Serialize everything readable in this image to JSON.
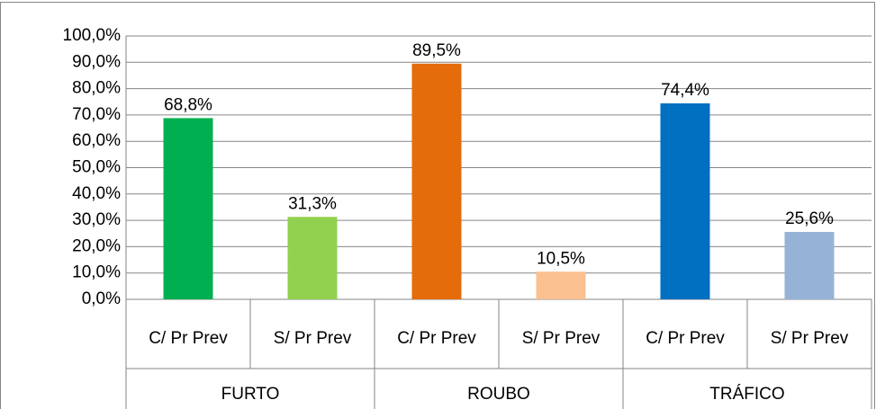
{
  "chart_data": {
    "type": "bar",
    "categories": [
      "C/ Pr Prev",
      "S/ Pr Prev",
      "C/ Pr Prev",
      "S/ Pr Prev",
      "C/ Pr Prev",
      "S/ Pr Prev"
    ],
    "groups": [
      "FURTO",
      "ROUBO",
      "TRÁFICO"
    ],
    "values": [
      68.8,
      31.3,
      89.5,
      10.5,
      74.4,
      25.6
    ],
    "value_labels": [
      "68,8%",
      "31,3%",
      "89,5%",
      "10,5%",
      "74,4%",
      "25,6%"
    ],
    "colors": [
      "#00b050",
      "#92d050",
      "#e46c0a",
      "#fac090",
      "#0070c0",
      "#95b3d7"
    ],
    "ylim": [
      0,
      100
    ],
    "yticks": [
      {
        "value": 0,
        "label": "0,0%"
      },
      {
        "value": 10,
        "label": "10,0%"
      },
      {
        "value": 20,
        "label": "20,0%"
      },
      {
        "value": 30,
        "label": "30,0%"
      },
      {
        "value": 40,
        "label": "40,0%"
      },
      {
        "value": 50,
        "label": "50,0%"
      },
      {
        "value": 60,
        "label": "60,0%"
      },
      {
        "value": 70,
        "label": "70,0%"
      },
      {
        "value": 80,
        "label": "80,0%"
      },
      {
        "value": 90,
        "label": "90,0%"
      },
      {
        "value": 100,
        "label": "100,0%"
      }
    ],
    "grid": true
  }
}
